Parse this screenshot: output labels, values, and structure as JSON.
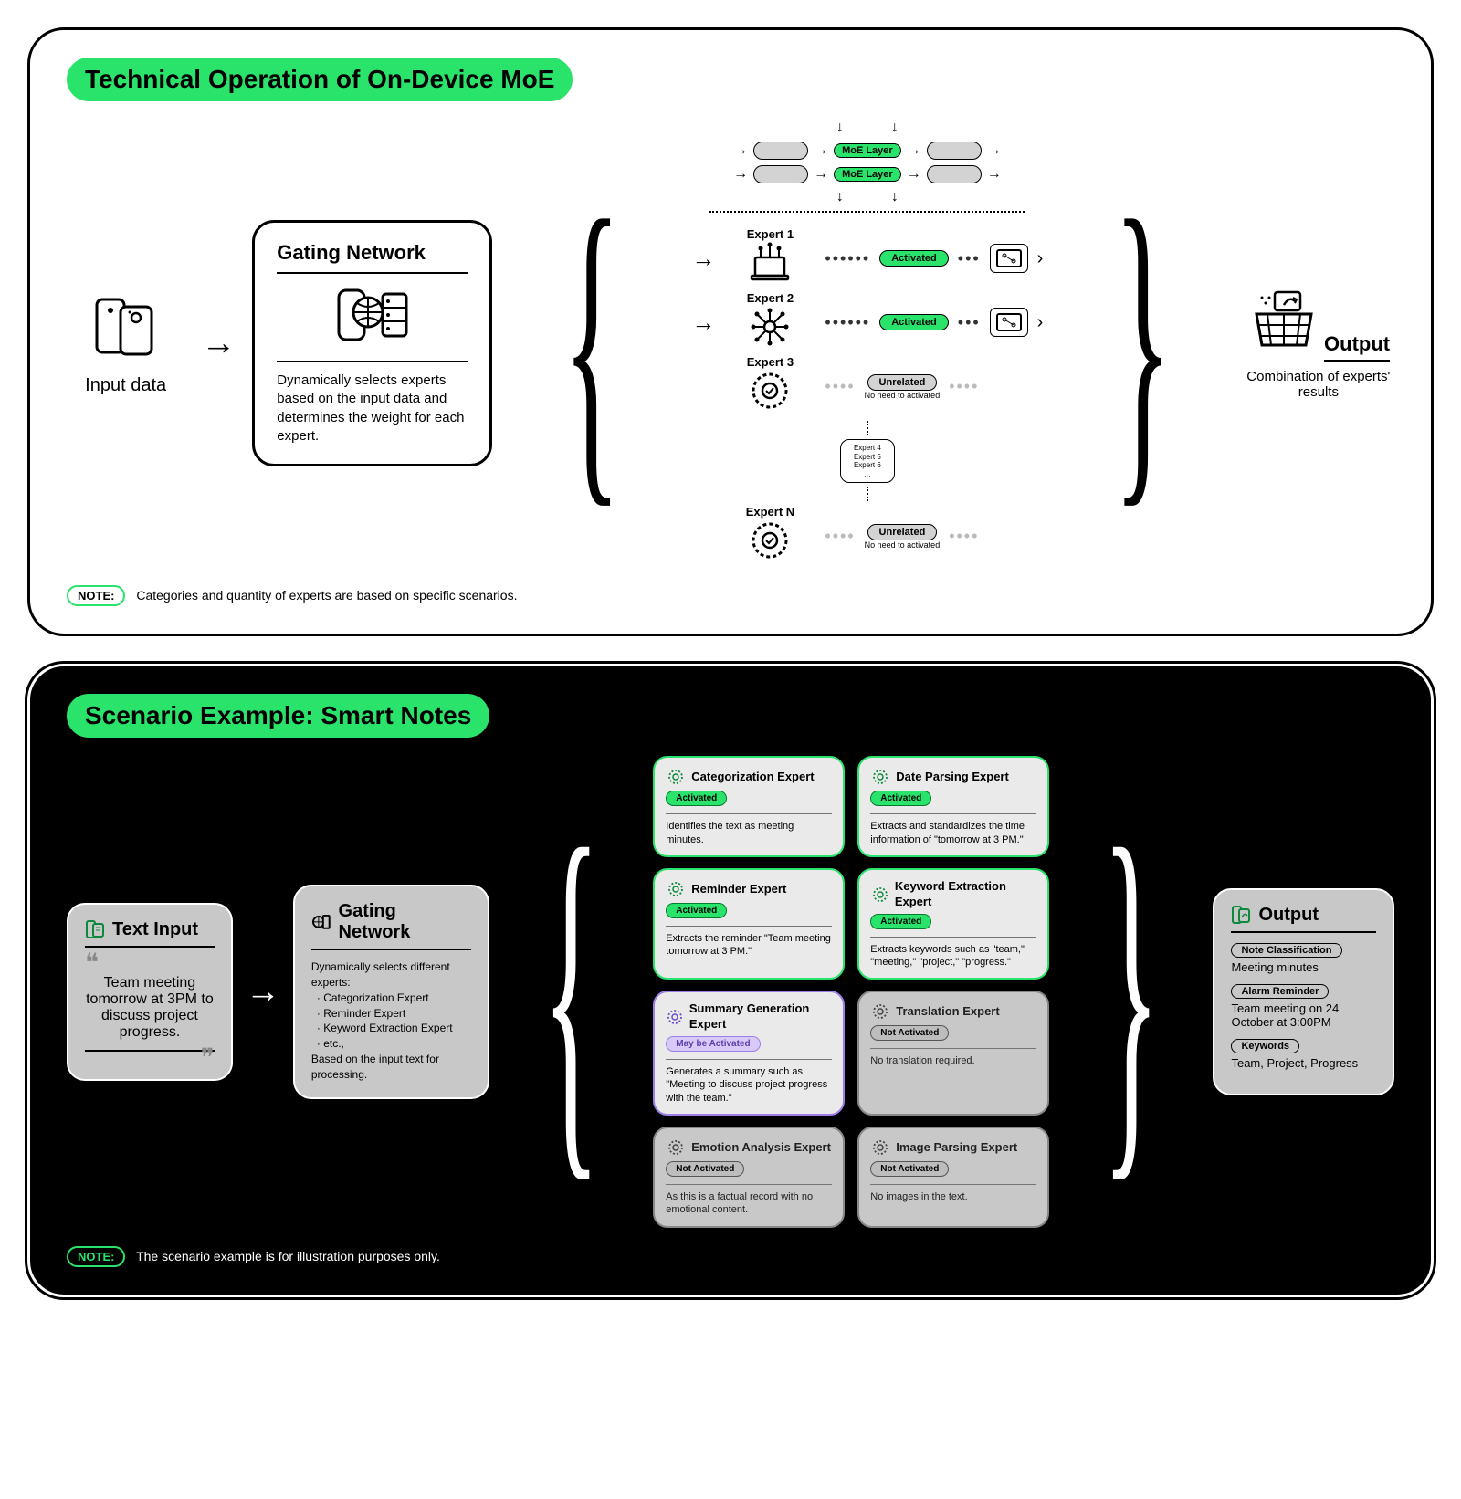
{
  "colors": {
    "green": "#2ae36a",
    "black": "#000000",
    "white": "#ffffff",
    "grey_pill": "#d3d3d3",
    "card_grey": "#c8c8c8",
    "purple": "#9b7fe6",
    "purple_fill": "#d7caf7",
    "not_border": "#888888"
  },
  "panel1": {
    "title": "Technical Operation of On-Device MoE",
    "input_label": "Input data",
    "gating": {
      "title": "Gating Network",
      "desc": "Dynamically selects experts based on the input data and determines the weight for each expert."
    },
    "moe_layer_label": "MoE Layer",
    "experts": [
      {
        "label": "Expert 1",
        "status": "Activated",
        "status_type": "activated",
        "show_arrow_in": true,
        "to_chip": true
      },
      {
        "label": "Expert 2",
        "status": "Activated",
        "status_type": "activated",
        "show_arrow_in": true,
        "to_chip": true
      },
      {
        "label": "Expert 3",
        "status": "Unrelated",
        "status_type": "unrelated",
        "note": "No need to activated",
        "to_chip": false
      },
      {
        "label": "Expert N",
        "status": "Unrelated",
        "status_type": "unrelated",
        "note": "No need to activated",
        "to_chip": false
      }
    ],
    "more_experts": "Expert 4\nExpert 5\nExpert 6\n…",
    "output": {
      "label": "Output",
      "desc": "Combination of experts' results"
    },
    "note_label": "NOTE:",
    "note_text": "Categories and quantity of experts are based on specific scenarios."
  },
  "panel2": {
    "title": "Scenario Example: Smart Notes",
    "text_input": {
      "title": "Text Input",
      "content": "Team meeting tomorrow at 3PM to discuss project progress."
    },
    "gating": {
      "title": "Gating Network",
      "intro": "Dynamically selects different experts:",
      "items": [
        "Categorization Expert",
        "Reminder Expert",
        "Keyword Extraction Expert",
        "etc.,"
      ],
      "outro": "Based on the input text for processing."
    },
    "experts": [
      {
        "title": "Categorization Expert",
        "status": "Activated",
        "type": "activated",
        "desc": "Identifies the text as meeting minutes."
      },
      {
        "title": "Date Parsing Expert",
        "status": "Activated",
        "type": "activated",
        "desc": "Extracts and standardizes the time information of \"tomorrow at 3 PM.\""
      },
      {
        "title": "Reminder Expert",
        "status": "Activated",
        "type": "activated",
        "desc": "Extracts the reminder \"Team meeting tomorrow at 3 PM.\""
      },
      {
        "title": "Keyword Extraction Expert",
        "status": "Activated",
        "type": "activated",
        "desc": "Extracts keywords such as \"team,\" \"meeting,\" \"project,\" \"progress.\""
      },
      {
        "title": "Summary Generation Expert",
        "status": "May be Activated",
        "type": "maybe",
        "desc": "Generates a summary such as \"Meeting to discuss project progress with the team.\""
      },
      {
        "title": "Translation Expert",
        "status": "Not Activated",
        "type": "not",
        "desc": "No translation required."
      },
      {
        "title": "Emotion Analysis Expert",
        "status": "Not Activated",
        "type": "not",
        "desc": "As this is a factual record with no emotional content."
      },
      {
        "title": "Image Parsing Expert",
        "status": "Not Activated",
        "type": "not",
        "desc": "No images in the text."
      }
    ],
    "output": {
      "title": "Output",
      "items": [
        {
          "label": "Note Classification",
          "value": "Meeting minutes"
        },
        {
          "label": "Alarm Reminder",
          "value": "Team meeting on 24 October at 3:00PM"
        },
        {
          "label": "Keywords",
          "value": "Team, Project, Progress"
        }
      ]
    },
    "note_label": "NOTE:",
    "note_text": "The scenario example is for illustration purposes only."
  }
}
